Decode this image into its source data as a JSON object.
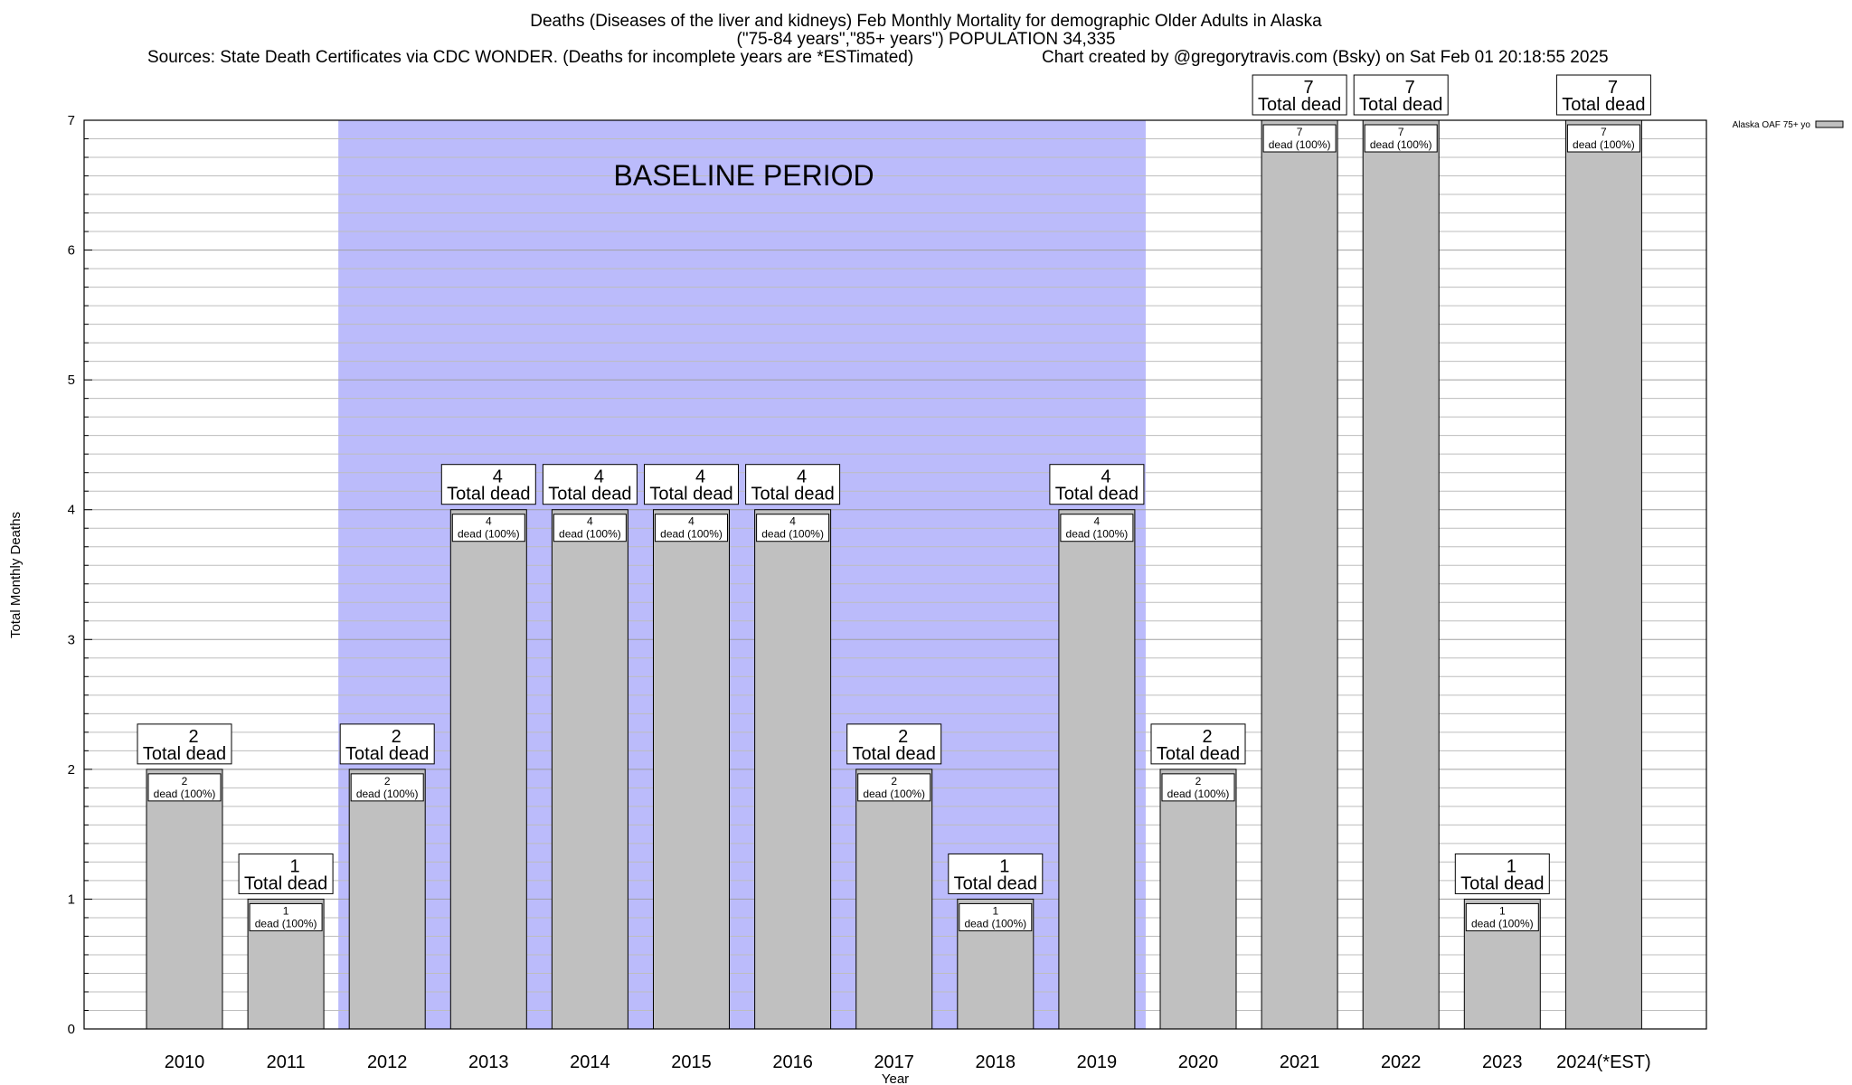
{
  "chart_data": {
    "type": "bar",
    "title": "Deaths (Diseases of the liver and kidneys) Feb Monthly Mortality for demographic Older Adults in Alaska",
    "subtitle": "(\"75-84 years\",\"85+ years\") POPULATION 34,335",
    "sources": "Sources: State Death Certificates via CDC WONDER. (Deaths for incomplete years are *ESTimated)",
    "credit": "Chart created by @gregorytravis.com (Bsky) on Sat Feb 01 20:18:55 2025",
    "xlabel": "Year",
    "ylabel": "Total Monthly Deaths",
    "ylim": [
      0,
      7
    ],
    "yticks": [
      0,
      1,
      2,
      3,
      4,
      5,
      6,
      7
    ],
    "categories": [
      "2010",
      "2011",
      "2012",
      "2013",
      "2014",
      "2015",
      "2016",
      "2017",
      "2018",
      "2019",
      "2020",
      "2021",
      "2022",
      "2023",
      "2024(*EST)"
    ],
    "series": [
      {
        "name": "Alaska OAF 75+ yo",
        "color": "#c0c0c0",
        "values": [
          2,
          1,
          2,
          4,
          4,
          4,
          4,
          2,
          1,
          4,
          2,
          7,
          7,
          1,
          7
        ]
      }
    ],
    "top_label_suffix": "Total dead",
    "inner_label_suffix": "dead (100%)",
    "baseline": {
      "label": "BASELINE PERIOD",
      "start": "2012",
      "end": "2019",
      "color": "#bbbbfb"
    },
    "grid": "horizontal",
    "legend_position": "top-right"
  }
}
